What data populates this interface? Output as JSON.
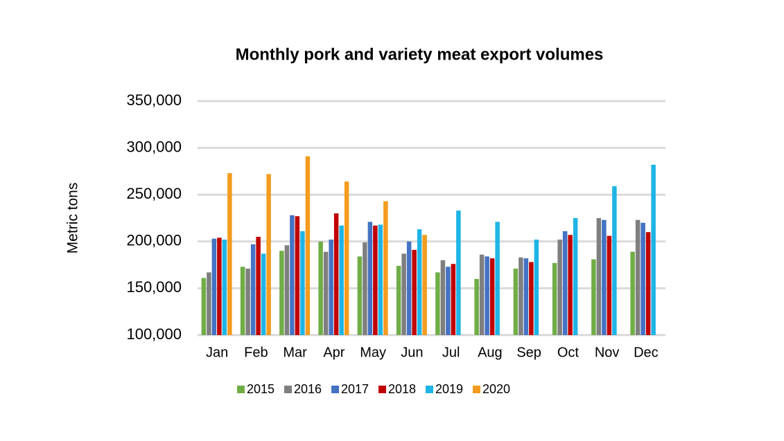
{
  "chart_data": {
    "type": "bar",
    "title": "Monthly pork and variety meat export volumes",
    "y_label": "Metric tons",
    "categories": [
      "Jan",
      "Feb",
      "Mar",
      "Apr",
      "May",
      "Jun",
      "Jul",
      "Aug",
      "Sep",
      "Oct",
      "Nov",
      "Dec"
    ],
    "series": [
      {
        "name": "2015",
        "color": "#70ad47",
        "values": [
          161000,
          173000,
          190000,
          200000,
          184000,
          174000,
          167000,
          160000,
          171000,
          177000,
          181000,
          189000
        ]
      },
      {
        "name": "2016",
        "color": "#7f7f7f",
        "values": [
          167000,
          171000,
          196000,
          189000,
          199000,
          187000,
          180000,
          186000,
          183000,
          202000,
          225000,
          223000
        ]
      },
      {
        "name": "2017",
        "color": "#4472c4",
        "values": [
          203000,
          197000,
          228000,
          202000,
          221000,
          200000,
          173000,
          184000,
          182000,
          211000,
          223000,
          220000
        ]
      },
      {
        "name": "2018",
        "color": "#c00000",
        "values": [
          204000,
          205000,
          227000,
          230000,
          217000,
          191000,
          176000,
          182000,
          178000,
          207000,
          206000,
          210000
        ]
      },
      {
        "name": "2019",
        "color": "#1fb4e6",
        "values": [
          202000,
          187000,
          211000,
          217000,
          218000,
          213000,
          233000,
          221000,
          202000,
          225000,
          259000,
          282000
        ]
      },
      {
        "name": "2020",
        "color": "#f39c1e",
        "values": [
          273000,
          272000,
          291000,
          264000,
          243000,
          207000,
          null,
          null,
          null,
          null,
          null,
          null
        ]
      }
    ],
    "ylim": [
      100000,
      350000
    ],
    "yticks": [
      {
        "value": 100000,
        "label": "100,000"
      },
      {
        "value": 150000,
        "label": "150,000"
      },
      {
        "value": 200000,
        "label": "200,000"
      },
      {
        "value": 250000,
        "label": "250,000"
      },
      {
        "value": 300000,
        "label": "300,000"
      },
      {
        "value": 350000,
        "label": "350,000"
      }
    ],
    "grid": true,
    "legend": "bottom"
  }
}
